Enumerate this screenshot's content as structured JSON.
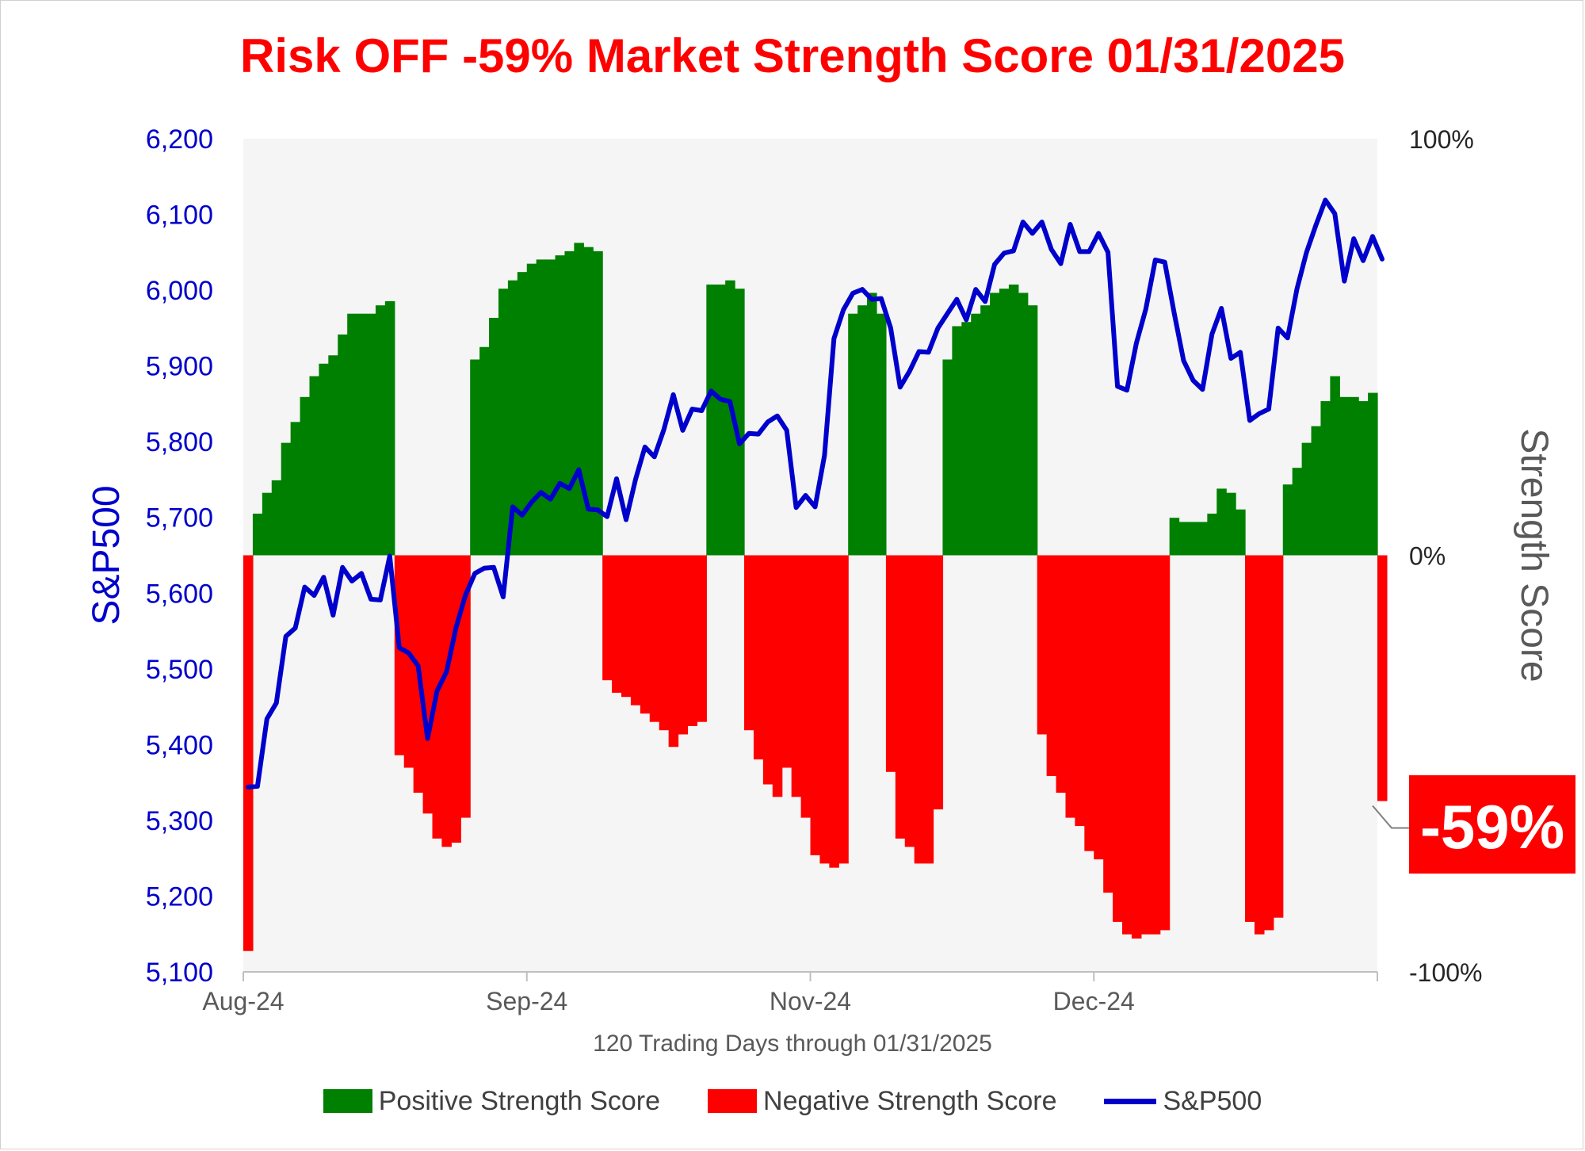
{
  "title": "Risk OFF -59% Market Strength Score 01/31/2025",
  "colors": {
    "title": "#ff0000",
    "positive": "#008000",
    "negative": "#ff0000",
    "sp500": "#0000cc",
    "left_axis": "#0000cc",
    "callout_bg": "#ff0000"
  },
  "legend": {
    "positive": "Positive Strength Score",
    "negative": "Negative Strength Score",
    "sp500": "S&P500"
  },
  "callout": {
    "label": "-59%"
  },
  "chart_data": {
    "type": "bar",
    "xlabel": "120 Trading Days through 01/31/2025",
    "ylabel_left": "S&P500",
    "ylabel_right": "Strength Score",
    "x_ticks": [
      "Aug-24",
      "Sep-24",
      "Nov-24",
      "Dec-24"
    ],
    "x_tick_days": [
      0,
      30,
      60,
      90
    ],
    "days": 120,
    "left_axis": {
      "min": 5100,
      "max": 6200,
      "ticks": [
        "6,200",
        "6,100",
        "6,000",
        "5,900",
        "5,800",
        "5,700",
        "5,600",
        "5,500",
        "5,400",
        "5,300",
        "5,200",
        "5,100"
      ]
    },
    "right_axis": {
      "min": -100,
      "max": 100,
      "ticks": [
        "100%",
        "0%",
        "-100%"
      ]
    },
    "legend_position": "bottom",
    "series": [
      {
        "name": "Positive Strength Score / Negative Strength Score",
        "values": [
          -95,
          10,
          15,
          18,
          27,
          32,
          38,
          43,
          46,
          48,
          53,
          58,
          58,
          58,
          60,
          61,
          -48,
          -51,
          -57,
          -62,
          -68,
          -70,
          -69,
          -63,
          47,
          50,
          57,
          64,
          66,
          68,
          70,
          71,
          71,
          72,
          73,
          75,
          74,
          73,
          -30,
          -33,
          -34,
          -36,
          -38,
          -40,
          -42,
          -46,
          -43,
          -41,
          -40,
          65,
          65,
          66,
          64,
          -42,
          -49,
          -55,
          -58,
          -51,
          -58,
          -63,
          -72,
          -74,
          -75,
          -74,
          58,
          60,
          63,
          58,
          -52,
          -68,
          -70,
          -74,
          -74,
          -61,
          47,
          55,
          56,
          58,
          60,
          63,
          64,
          65,
          63,
          60,
          -43,
          -53,
          -57,
          -63,
          -65,
          -71,
          -73,
          -81,
          -88,
          -91,
          -92,
          -91,
          -91,
          -90,
          9,
          8,
          8,
          8,
          10,
          16,
          15,
          11,
          -88,
          -91,
          -90,
          -87,
          17,
          21,
          27,
          31,
          37,
          43,
          38,
          38,
          37,
          39,
          -59
        ]
      },
      {
        "name": "S&P500",
        "values": [
          5344,
          5345,
          5434,
          5455,
          5543,
          5554,
          5608,
          5597,
          5621,
          5571,
          5634,
          5616,
          5626,
          5592,
          5591,
          5649,
          5528,
          5521,
          5504,
          5408,
          5471,
          5496,
          5554,
          5597,
          5626,
          5633,
          5634,
          5595,
          5714,
          5703,
          5720,
          5733,
          5724,
          5745,
          5738,
          5763,
          5711,
          5710,
          5701,
          5751,
          5697,
          5750,
          5793,
          5780,
          5816,
          5862,
          5815,
          5843,
          5841,
          5867,
          5856,
          5853,
          5797,
          5811,
          5810,
          5826,
          5834,
          5815,
          5713,
          5729,
          5714,
          5782,
          5936,
          5974,
          5996,
          6001,
          5988,
          5989,
          5950,
          5872,
          5893,
          5919,
          5918,
          5950,
          5969,
          5988,
          5961,
          6001,
          5985,
          6034,
          6049,
          6052,
          6090,
          6075,
          6090,
          6054,
          6035,
          6087,
          6051,
          6051,
          6075,
          6050,
          5873,
          5868,
          5930,
          5975,
          6040,
          6037,
          5970,
          5907,
          5881,
          5869,
          5942,
          5976,
          5910,
          5918,
          5828,
          5837,
          5843,
          5950,
          5937,
          6002,
          6050,
          6086,
          6119,
          6101,
          6012,
          6068,
          6039,
          6071,
          6041
        ]
      }
    ]
  }
}
